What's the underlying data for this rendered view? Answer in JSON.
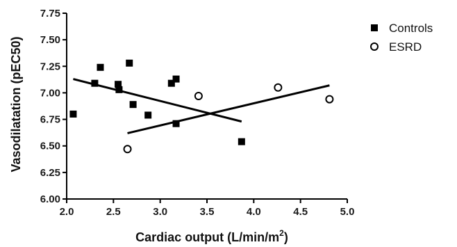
{
  "chart_data": {
    "type": "scatter",
    "xlabel": "Cardiac output (L/min/m",
    "xlabel_superscript": "2",
    "xlabel_suffix": ")",
    "ylabel": "Vasodilatation (pEC50)",
    "xlim": [
      2.0,
      5.0
    ],
    "ylim": [
      6.0,
      7.75
    ],
    "x_ticks": [
      "2.0",
      "2.5",
      "3.0",
      "3.5",
      "4.0",
      "4.5",
      "5.0"
    ],
    "y_ticks": [
      "6.00",
      "6.25",
      "6.50",
      "6.75",
      "7.00",
      "7.25",
      "7.50",
      "7.75"
    ],
    "grid": false,
    "legend_position": "top-right",
    "series": [
      {
        "name": "Controls",
        "marker": "filled-square",
        "color": "#000000",
        "points": [
          [
            2.07,
            6.8
          ],
          [
            2.3,
            7.09
          ],
          [
            2.36,
            7.24
          ],
          [
            2.55,
            7.08
          ],
          [
            2.56,
            7.03
          ],
          [
            2.67,
            7.28
          ],
          [
            2.71,
            6.89
          ],
          [
            2.87,
            6.79
          ],
          [
            3.12,
            7.09
          ],
          [
            3.17,
            7.13
          ],
          [
            3.17,
            6.71
          ],
          [
            3.87,
            6.54
          ]
        ],
        "fit_line": [
          [
            2.07,
            7.13
          ],
          [
            3.87,
            6.73
          ]
        ]
      },
      {
        "name": "ESRD",
        "marker": "open-circle",
        "color": "#000000",
        "points": [
          [
            2.65,
            6.47
          ],
          [
            3.41,
            6.97
          ],
          [
            4.26,
            7.05
          ],
          [
            4.81,
            6.94
          ]
        ],
        "fit_line": [
          [
            2.65,
            6.62
          ],
          [
            4.81,
            7.07
          ]
        ]
      }
    ]
  }
}
